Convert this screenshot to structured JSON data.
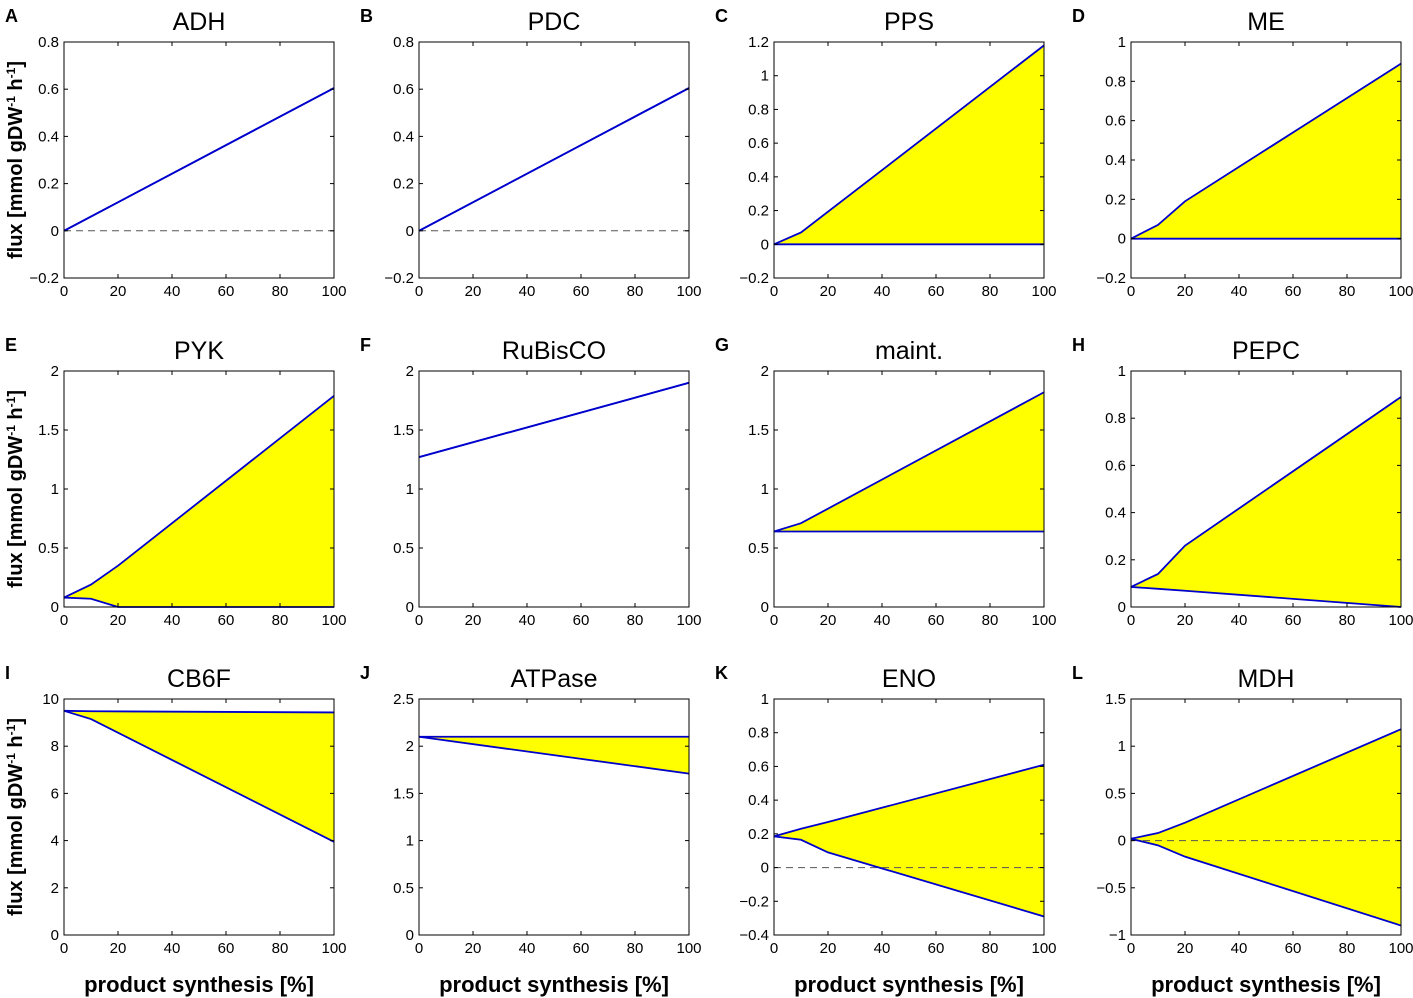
{
  "chart_data": {
    "type": "line",
    "layout": "3x4 grid of small-multiple flux-range plots",
    "shared_ylabel": {
      "main": "flux [mmol gDW",
      "sup1": "-1",
      "mid": " h",
      "sup2": "-1",
      "end": "]"
    },
    "shared_xlabel": "product synthesis [%]",
    "fill_color": "#ffff00",
    "line_color": "#0000cc",
    "dashed_zero_color": "#555555",
    "panels": [
      {
        "letter": "A",
        "title": "ADH",
        "xlim": [
          0,
          100
        ],
        "ylim": [
          -0.2,
          0.8
        ],
        "xticks": [
          0,
          20,
          40,
          60,
          80,
          100
        ],
        "xtick_labels": [
          "0",
          "20",
          "40",
          "60",
          "80",
          "100"
        ],
        "yticks": [
          -0.2,
          0,
          0.2,
          0.4,
          0.6,
          0.8
        ],
        "ytick_labels": [
          "−0.2",
          "0",
          "0.2",
          "0.4",
          "0.6",
          "0.8"
        ],
        "zero_line": true,
        "x": [
          0,
          100
        ],
        "upper": [
          0,
          0.605
        ],
        "lower": [
          0,
          0.605
        ]
      },
      {
        "letter": "B",
        "title": "PDC",
        "xlim": [
          0,
          100
        ],
        "ylim": [
          -0.2,
          0.8
        ],
        "xticks": [
          0,
          20,
          40,
          60,
          80,
          100
        ],
        "xtick_labels": [
          "0",
          "20",
          "40",
          "60",
          "80",
          "100"
        ],
        "yticks": [
          -0.2,
          0,
          0.2,
          0.4,
          0.6,
          0.8
        ],
        "ytick_labels": [
          "−0.2",
          "0",
          "0.2",
          "0.4",
          "0.6",
          "0.8"
        ],
        "zero_line": true,
        "x": [
          0,
          100
        ],
        "upper": [
          0,
          0.605
        ],
        "lower": [
          0,
          0.605
        ]
      },
      {
        "letter": "C",
        "title": "PPS",
        "xlim": [
          0,
          100
        ],
        "ylim": [
          -0.2,
          1.2
        ],
        "xticks": [
          0,
          20,
          40,
          60,
          80,
          100
        ],
        "xtick_labels": [
          "0",
          "20",
          "40",
          "60",
          "80",
          "100"
        ],
        "yticks": [
          -0.2,
          0,
          0.2,
          0.4,
          0.6,
          0.8,
          1,
          1.2
        ],
        "ytick_labels": [
          "−0.2",
          "0",
          "0.2",
          "0.4",
          "0.6",
          "0.8",
          "1",
          "1.2"
        ],
        "zero_line": false,
        "x": [
          0,
          10,
          100
        ],
        "upper": [
          0,
          0.07,
          1.18
        ],
        "lower": [
          0,
          0,
          0
        ]
      },
      {
        "letter": "D",
        "title": "ME",
        "xlim": [
          0,
          100
        ],
        "ylim": [
          -0.2,
          1
        ],
        "xticks": [
          0,
          20,
          40,
          60,
          80,
          100
        ],
        "xtick_labels": [
          "0",
          "20",
          "40",
          "60",
          "80",
          "100"
        ],
        "yticks": [
          -0.2,
          0,
          0.2,
          0.4,
          0.6,
          0.8,
          1
        ],
        "ytick_labels": [
          "−0.2",
          "0",
          "0.2",
          "0.4",
          "0.6",
          "0.8",
          "1"
        ],
        "zero_line": false,
        "x": [
          0,
          10,
          20,
          100
        ],
        "upper": [
          0,
          0.07,
          0.19,
          0.89
        ],
        "lower": [
          0,
          0,
          0,
          0
        ]
      },
      {
        "letter": "E",
        "title": "PYK",
        "xlim": [
          0,
          100
        ],
        "ylim": [
          0,
          2
        ],
        "xticks": [
          0,
          20,
          40,
          60,
          80,
          100
        ],
        "xtick_labels": [
          "0",
          "20",
          "40",
          "60",
          "80",
          "100"
        ],
        "yticks": [
          0,
          0.5,
          1,
          1.5,
          2
        ],
        "ytick_labels": [
          "0",
          "0.5",
          "1",
          "1.5",
          "2"
        ],
        "zero_line": false,
        "x": [
          0,
          10,
          20,
          100
        ],
        "upper": [
          0.08,
          0.19,
          0.35,
          1.79
        ],
        "lower": [
          0.08,
          0.07,
          0,
          0
        ]
      },
      {
        "letter": "F",
        "title": "RuBisCO",
        "xlim": [
          0,
          100
        ],
        "ylim": [
          0,
          2
        ],
        "xticks": [
          0,
          20,
          40,
          60,
          80,
          100
        ],
        "xtick_labels": [
          "0",
          "20",
          "40",
          "60",
          "80",
          "100"
        ],
        "yticks": [
          0,
          0.5,
          1,
          1.5,
          2
        ],
        "ytick_labels": [
          "0",
          "0.5",
          "1",
          "1.5",
          "2"
        ],
        "zero_line": false,
        "x": [
          0,
          100
        ],
        "upper": [
          1.27,
          1.9
        ],
        "lower": [
          1.27,
          1.9
        ]
      },
      {
        "letter": "G",
        "title": "maint.",
        "xlim": [
          0,
          100
        ],
        "ylim": [
          0,
          2
        ],
        "xticks": [
          0,
          20,
          40,
          60,
          80,
          100
        ],
        "xtick_labels": [
          "0",
          "20",
          "40",
          "60",
          "80",
          "100"
        ],
        "yticks": [
          0,
          0.5,
          1,
          1.5,
          2
        ],
        "ytick_labels": [
          "0",
          "0.5",
          "1",
          "1.5",
          "2"
        ],
        "zero_line": false,
        "x": [
          0,
          10,
          100
        ],
        "upper": [
          0.64,
          0.71,
          1.82
        ],
        "lower": [
          0.64,
          0.64,
          0.64
        ]
      },
      {
        "letter": "H",
        "title": "PEPC",
        "xlim": [
          0,
          100
        ],
        "ylim": [
          0,
          1
        ],
        "xticks": [
          0,
          20,
          40,
          60,
          80,
          100
        ],
        "xtick_labels": [
          "0",
          "20",
          "40",
          "60",
          "80",
          "100"
        ],
        "yticks": [
          0,
          0.2,
          0.4,
          0.6,
          0.8,
          1
        ],
        "ytick_labels": [
          "0",
          "0.2",
          "0.4",
          "0.6",
          "0.8",
          "1"
        ],
        "zero_line": false,
        "x": [
          0,
          10,
          20,
          100
        ],
        "upper": [
          0.085,
          0.14,
          0.26,
          0.89
        ],
        "lower": [
          0.085,
          0.077,
          0.069,
          0
        ]
      },
      {
        "letter": "I",
        "title": "CB6F",
        "xlim": [
          0,
          100
        ],
        "ylim": [
          0,
          10
        ],
        "xticks": [
          0,
          20,
          40,
          60,
          80,
          100
        ],
        "xtick_labels": [
          "0",
          "20",
          "40",
          "60",
          "80",
          "100"
        ],
        "yticks": [
          0,
          2,
          4,
          6,
          8,
          10
        ],
        "ytick_labels": [
          "0",
          "2",
          "4",
          "6",
          "8",
          "10"
        ],
        "zero_line": false,
        "x": [
          0,
          10,
          100
        ],
        "upper": [
          9.5,
          9.48,
          9.43
        ],
        "lower": [
          9.5,
          9.15,
          3.95
        ]
      },
      {
        "letter": "J",
        "title": "ATPase",
        "xlim": [
          0,
          100
        ],
        "ylim": [
          0,
          2.5
        ],
        "xticks": [
          0,
          20,
          40,
          60,
          80,
          100
        ],
        "xtick_labels": [
          "0",
          "20",
          "40",
          "60",
          "80",
          "100"
        ],
        "yticks": [
          0,
          0.5,
          1,
          1.5,
          2,
          2.5
        ],
        "ytick_labels": [
          "0",
          "0.5",
          "1",
          "1.5",
          "2",
          "2.5"
        ],
        "zero_line": false,
        "x": [
          0,
          100
        ],
        "upper": [
          2.1,
          2.1
        ],
        "lower": [
          2.1,
          1.71
        ]
      },
      {
        "letter": "K",
        "title": "ENO",
        "xlim": [
          0,
          100
        ],
        "ylim": [
          -0.4,
          1
        ],
        "xticks": [
          0,
          20,
          40,
          60,
          80,
          100
        ],
        "xtick_labels": [
          "0",
          "20",
          "40",
          "60",
          "80",
          "100"
        ],
        "yticks": [
          -0.4,
          -0.2,
          0,
          0.2,
          0.4,
          0.6,
          0.8,
          1
        ],
        "ytick_labels": [
          "−0.4",
          "−0.2",
          "0",
          "0.2",
          "0.4",
          "0.6",
          "0.8",
          "1"
        ],
        "zero_line": true,
        "x": [
          0,
          10,
          20,
          100
        ],
        "upper": [
          0.185,
          0.23,
          0.27,
          0.61
        ],
        "lower": [
          0.185,
          0.165,
          0.09,
          -0.29
        ]
      },
      {
        "letter": "L",
        "title": "MDH",
        "xlim": [
          0,
          100
        ],
        "ylim": [
          -1,
          1.5
        ],
        "xticks": [
          0,
          20,
          40,
          60,
          80,
          100
        ],
        "xtick_labels": [
          "0",
          "20",
          "40",
          "60",
          "80",
          "100"
        ],
        "yticks": [
          -1,
          -0.5,
          0,
          0.5,
          1,
          1.5
        ],
        "ytick_labels": [
          "−1",
          "−0.5",
          "0",
          "0.5",
          "1",
          "1.5"
        ],
        "zero_line": true,
        "x": [
          0,
          10,
          20,
          100
        ],
        "upper": [
          0.02,
          0.08,
          0.19,
          1.18
        ],
        "lower": [
          0.02,
          -0.05,
          -0.17,
          -0.9
        ]
      }
    ]
  }
}
